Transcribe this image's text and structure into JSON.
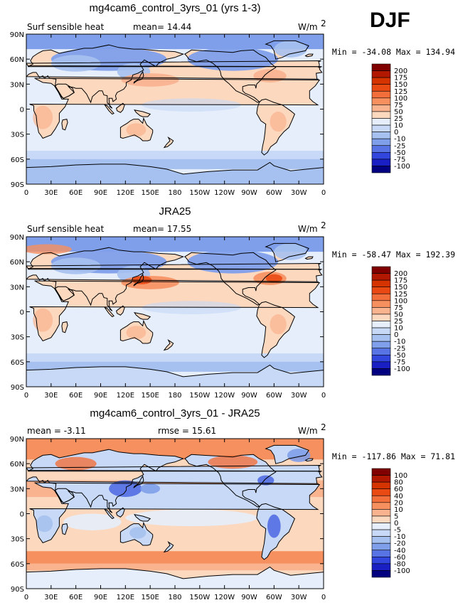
{
  "season": "DJF",
  "chart_data": [
    {
      "type": "heatmap",
      "title": "mg4cam6_control_3yrs_01 (yrs 1-3)",
      "left_label": "Surf sensible heat",
      "center_label": "mean=  14.44",
      "units": "W/m",
      "units_exp": "2",
      "min_max": "Min = -34.08 Max = 134.94",
      "min": -34.08,
      "max": 134.94,
      "mean": 14.44,
      "lat_ticks": [
        "90N",
        "60N",
        "30N",
        "0",
        "30S",
        "60S",
        "90S"
      ],
      "lon_ticks": [
        "0",
        "30E",
        "60E",
        "90E",
        "120E",
        "150E",
        "180",
        "150W",
        "120W",
        "90W",
        "60W",
        "30W",
        "0"
      ],
      "colorbar": {
        "labels": [
          "200",
          "175",
          "150",
          "125",
          "100",
          "75",
          "50",
          "25",
          "10",
          "0",
          "-10",
          "-25",
          "-50",
          "-75",
          "-100"
        ],
        "colors": [
          "#800000",
          "#b21800",
          "#d53400",
          "#e94a14",
          "#f26f3c",
          "#f7905f",
          "#f9b38f",
          "#fcd8bf",
          "#e6eefb",
          "#c7d9f6",
          "#a6c1ef",
          "#7f9fea",
          "#5874e4",
          "#3246dd",
          "#1a1fc4",
          "#000080"
        ]
      }
    },
    {
      "type": "heatmap",
      "title": "JRA25",
      "left_label": "Surf sensible heat",
      "center_label": "mean=  17.55",
      "units": "W/m",
      "units_exp": "2",
      "min_max": "Min = -58.47 Max = 192.39",
      "min": -58.47,
      "max": 192.39,
      "mean": 17.55,
      "lat_ticks": [
        "90N",
        "60N",
        "30N",
        "0",
        "30S",
        "60S",
        "90S"
      ],
      "lon_ticks": [
        "0",
        "30E",
        "60E",
        "90E",
        "120E",
        "150E",
        "180",
        "150W",
        "120W",
        "90W",
        "60W",
        "30W",
        "0"
      ],
      "colorbar": {
        "labels": [
          "200",
          "175",
          "150",
          "125",
          "100",
          "75",
          "50",
          "25",
          "10",
          "0",
          "-10",
          "-25",
          "-50",
          "-75",
          "-100"
        ],
        "colors": [
          "#800000",
          "#b21800",
          "#d53400",
          "#e94a14",
          "#f26f3c",
          "#f7905f",
          "#f9b38f",
          "#fcd8bf",
          "#e6eefb",
          "#c7d9f6",
          "#a6c1ef",
          "#7f9fea",
          "#5874e4",
          "#3246dd",
          "#1a1fc4",
          "#000080"
        ]
      }
    },
    {
      "type": "heatmap",
      "title": "mg4cam6_control_3yrs_01 - JRA25",
      "left_label": "mean =  -3.11",
      "center_label": "rmse =  15.61",
      "units": "W/m",
      "units_exp": "2",
      "min_max": "Min = -117.86 Max =  71.81",
      "min": -117.86,
      "max": 71.81,
      "mean": -3.11,
      "rmse": 15.61,
      "lat_ticks": [
        "90N",
        "60N",
        "30N",
        "0",
        "30S",
        "60S",
        "90S"
      ],
      "lon_ticks": [
        "0",
        "30E",
        "60E",
        "90E",
        "120E",
        "150E",
        "180",
        "150W",
        "120W",
        "90W",
        "60W",
        "30W",
        "0"
      ],
      "colorbar": {
        "labels": [
          "100",
          "80",
          "60",
          "40",
          "20",
          "10",
          "5",
          "0",
          "-5",
          "-10",
          "-20",
          "-40",
          "-60",
          "-80",
          "-100"
        ],
        "colors": [
          "#800000",
          "#b21800",
          "#d53400",
          "#e94a14",
          "#f26f3c",
          "#f7905f",
          "#f9b38f",
          "#fcd8bf",
          "#e6eefb",
          "#c7d9f6",
          "#a6c1ef",
          "#7f9fea",
          "#5874e4",
          "#3246dd",
          "#1a1fc4",
          "#000080"
        ]
      }
    }
  ]
}
